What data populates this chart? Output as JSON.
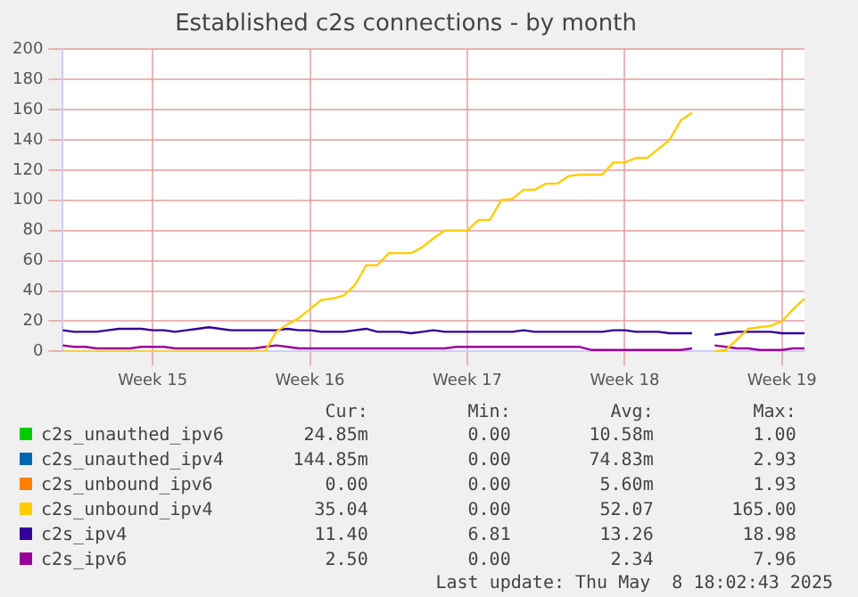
{
  "chart_data": {
    "type": "line",
    "title": "Established c2s connections - by month",
    "categories": [
      null,
      null,
      null,
      null,
      null,
      null,
      null,
      null,
      "Week 15",
      null,
      null,
      null,
      null,
      null,
      null,
      null,
      null,
      null,
      null,
      null,
      null,
      null,
      "Week 16",
      null,
      null,
      null,
      null,
      null,
      null,
      null,
      null,
      null,
      null,
      null,
      null,
      null,
      "Week 17",
      null,
      null,
      null,
      null,
      null,
      null,
      null,
      null,
      null,
      null,
      null,
      null,
      null,
      "Week 18",
      null,
      null,
      null,
      null,
      null,
      null,
      null,
      null,
      null,
      null,
      null,
      null,
      null,
      "Week 19",
      null,
      null
    ],
    "ylim": [
      0,
      200
    ],
    "yticks": [
      0,
      20,
      40,
      60,
      80,
      100,
      120,
      140,
      160,
      180,
      200
    ],
    "grid": true,
    "legend": "bottom",
    "marker": "none",
    "line_style": "solid",
    "series": [
      {
        "name": "c2s_unauthed_ipv6",
        "color": "#00cc00",
        "values": [
          null,
          null,
          null,
          null,
          null,
          null,
          null,
          null,
          null,
          null,
          null,
          null,
          null,
          null,
          null,
          null,
          null,
          null,
          null,
          null,
          null,
          null,
          null,
          null,
          null,
          null,
          null,
          null,
          null,
          null,
          null,
          null,
          null,
          null,
          null,
          null,
          null,
          null,
          null,
          null,
          null,
          null,
          null,
          null,
          null,
          null,
          null,
          null,
          null,
          null,
          null,
          null,
          null,
          null,
          null,
          null,
          null,
          null,
          null,
          null,
          null,
          null,
          null,
          null,
          null,
          null,
          null
        ]
      },
      {
        "name": "c2s_unauthed_ipv4",
        "color": "#0066b3",
        "values": [
          null,
          null,
          null,
          null,
          null,
          null,
          null,
          null,
          null,
          null,
          null,
          null,
          null,
          null,
          null,
          null,
          null,
          null,
          null,
          null,
          null,
          null,
          null,
          null,
          null,
          null,
          null,
          null,
          null,
          null,
          null,
          null,
          null,
          null,
          null,
          null,
          null,
          null,
          null,
          null,
          null,
          null,
          null,
          null,
          null,
          null,
          null,
          null,
          null,
          null,
          null,
          null,
          null,
          null,
          null,
          null,
          null,
          null,
          null,
          null,
          null,
          null,
          null,
          null,
          null,
          null,
          null
        ]
      },
      {
        "name": "c2s_unbound_ipv6",
        "color": "#ff8000",
        "values": [
          null,
          null,
          null,
          null,
          null,
          null,
          null,
          null,
          null,
          null,
          null,
          null,
          null,
          null,
          null,
          null,
          null,
          null,
          null,
          null,
          null,
          null,
          null,
          null,
          null,
          null,
          null,
          null,
          null,
          null,
          null,
          null,
          null,
          null,
          null,
          null,
          null,
          null,
          null,
          null,
          null,
          null,
          null,
          null,
          null,
          null,
          null,
          null,
          null,
          null,
          null,
          null,
          null,
          null,
          null,
          null,
          null,
          null,
          null,
          null,
          null,
          null,
          null,
          null,
          null,
          null,
          null
        ]
      },
      {
        "name": "c2s_unbound_ipv4",
        "color": "#ffcc00",
        "values": [
          0,
          0,
          0,
          0,
          0,
          0,
          0,
          0,
          0,
          0,
          0,
          0,
          0,
          0,
          0,
          0,
          0,
          0,
          0,
          13,
          18,
          22,
          28,
          34,
          35,
          37,
          44,
          57,
          57,
          65,
          65,
          65,
          69,
          75,
          80,
          80,
          80,
          87,
          87,
          100,
          101,
          107,
          107,
          111,
          111,
          116,
          117,
          117,
          117,
          125,
          125,
          128,
          128,
          134,
          140,
          153,
          158,
          null,
          0,
          1,
          8,
          15,
          16,
          17,
          20,
          28,
          35
        ]
      },
      {
        "name": "c2s_ipv4",
        "color": "#330099",
        "values": [
          14,
          13,
          13,
          13,
          14,
          15,
          15,
          15,
          14,
          14,
          13,
          14,
          15,
          16,
          15,
          14,
          14,
          14,
          14,
          14,
          15,
          14,
          14,
          13,
          13,
          13,
          14,
          15,
          13,
          13,
          13,
          12,
          13,
          14,
          13,
          13,
          13,
          13,
          13,
          13,
          13,
          14,
          13,
          13,
          13,
          13,
          13,
          13,
          13,
          14,
          14,
          13,
          13,
          13,
          12,
          12,
          12,
          null,
          11,
          12,
          13,
          13,
          13,
          13,
          12,
          12,
          12
        ]
      },
      {
        "name": "c2s_ipv6",
        "color": "#990099",
        "values": [
          4,
          3,
          3,
          2,
          2,
          2,
          2,
          3,
          3,
          3,
          2,
          2,
          2,
          2,
          2,
          2,
          2,
          2,
          3,
          4,
          3,
          2,
          2,
          2,
          2,
          2,
          2,
          2,
          2,
          2,
          2,
          2,
          2,
          2,
          2,
          3,
          3,
          3,
          3,
          3,
          3,
          3,
          3,
          3,
          3,
          3,
          3,
          1,
          1,
          1,
          1,
          1,
          1,
          1,
          1,
          1,
          2,
          null,
          4,
          3,
          2,
          2,
          1,
          1,
          1,
          2,
          2
        ]
      }
    ],
    "annotations": [
      "Cur:",
      "Min:",
      "Avg:",
      "Max:",
      "24.85m",
      "0.00",
      "10.58m",
      "1.00",
      "144.85m",
      "0.00",
      "74.83m",
      "2.93",
      "0.00",
      "0.00",
      "5.60m",
      "1.93",
      "35.04",
      "0.00",
      "52.07",
      "165.00",
      "11.40",
      "6.81",
      "13.26",
      "18.98",
      "2.50",
      "0.00",
      "2.34",
      "7.96",
      "Last update: Thu May  8 18:02:43 2025"
    ]
  }
}
